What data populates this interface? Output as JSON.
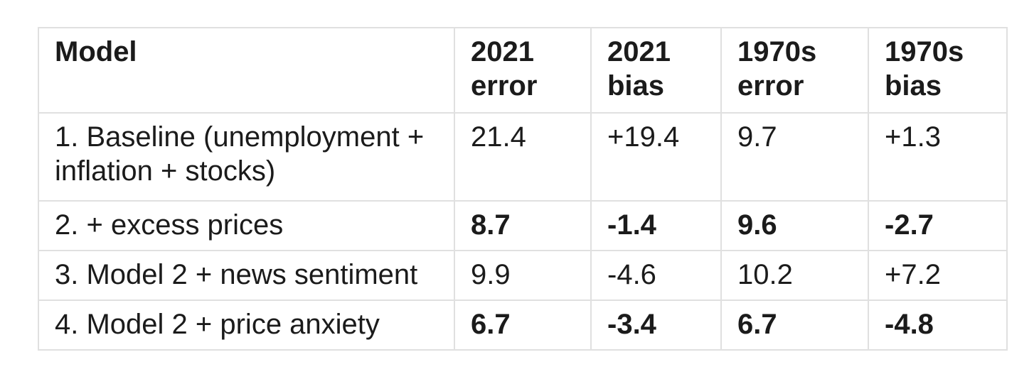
{
  "table": {
    "columns": [
      "Model",
      "2021 error",
      "2021 bias",
      "1970s error",
      "1970s bias"
    ],
    "rows": [
      {
        "model": "1. Baseline (unemployment + inflation + stocks)",
        "values": [
          "21.4",
          "+19.4",
          "9.7",
          "+1.3"
        ],
        "bold": false
      },
      {
        "model": "2. + excess prices",
        "values": [
          "8.7",
          "-1.4",
          "9.6",
          "-2.7"
        ],
        "bold": true
      },
      {
        "model": "3. Model 2 + news sentiment",
        "values": [
          "9.9",
          "-4.6",
          "10.2",
          "+7.2"
        ],
        "bold": false
      },
      {
        "model": "4. Model 2 + price anxiety",
        "values": [
          "6.7",
          "-3.4",
          "6.7",
          "-4.8"
        ],
        "bold": true
      }
    ]
  },
  "colors": {
    "background": "#ffffff",
    "border": "#e0e0e0",
    "text": "#1b1b1b"
  }
}
